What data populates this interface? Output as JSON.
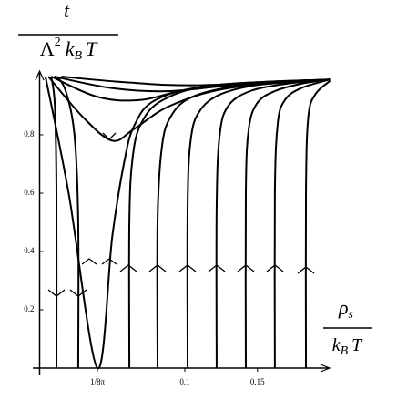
{
  "chart_data": {
    "type": "flow",
    "color": "#000000",
    "ylabel": {
      "numerator": "t",
      "denominator": [
        "Λ",
        "2",
        "k",
        "B",
        "T"
      ]
    },
    "xlabel": {
      "numerator": [
        "ρ",
        "s"
      ],
      "denominator": [
        "k",
        "B",
        "T"
      ]
    },
    "xlim": [
      0,
      0.2
    ],
    "ylim": [
      0,
      1
    ],
    "xticks": [
      {
        "value": 0.0398,
        "label": "1/8π"
      },
      0.1,
      0.15
    ],
    "yticks": [
      0.2,
      0.4,
      0.6,
      0.8
    ],
    "series": [
      {
        "x": [
          0.0116,
          0.0116,
          0.0105,
          0.008
        ],
        "y": [
          0,
          0.6,
          0.9,
          1.0
        ]
      },
      {
        "x": [
          0.0266,
          0.0266,
          0.024,
          0.018,
          0.012
        ],
        "y": [
          0,
          0.5,
          0.8,
          0.95,
          1.0
        ]
      },
      {
        "x": [
          0.004,
          0.02,
          0.0398,
          0.05,
          0.058,
          0.065,
          0.08,
          0.12,
          0.2
        ],
        "y": [
          1.0,
          0.6,
          0,
          0.45,
          0.7,
          0.83,
          0.92,
          0.97,
          0.99
        ]
      },
      {
        "x": [
          0.006,
          0.03,
          0.05,
          0.065,
          0.09,
          0.13,
          0.2
        ],
        "y": [
          1.0,
          0.86,
          0.78,
          0.82,
          0.9,
          0.96,
          0.99
        ]
      },
      {
        "x": [
          0.008,
          0.04,
          0.07,
          0.11,
          0.2
        ],
        "y": [
          1.0,
          0.93,
          0.92,
          0.96,
          0.99
        ]
      },
      {
        "x": [
          0.01,
          0.05,
          0.09,
          0.14,
          0.2
        ],
        "y": [
          1.0,
          0.96,
          0.95,
          0.975,
          0.99
        ]
      },
      {
        "x": [
          0.015,
          0.06,
          0.11,
          0.2
        ],
        "y": [
          1.0,
          0.98,
          0.97,
          0.99
        ]
      },
      {
        "x": [
          0.0618,
          0.0618,
          0.064,
          0.07,
          0.085,
          0.12,
          0.2
        ],
        "y": [
          0,
          0.5,
          0.72,
          0.84,
          0.92,
          0.97,
          0.99
        ]
      },
      {
        "x": [
          0.0812,
          0.0812,
          0.084,
          0.09,
          0.105,
          0.14,
          0.2
        ],
        "y": [
          0,
          0.5,
          0.75,
          0.86,
          0.93,
          0.97,
          0.99
        ]
      },
      {
        "x": [
          0.1019,
          0.1019,
          0.104,
          0.11,
          0.125,
          0.155,
          0.2
        ],
        "y": [
          0,
          0.55,
          0.78,
          0.88,
          0.94,
          0.975,
          0.99
        ]
      },
      {
        "x": [
          0.1219,
          0.1219,
          0.124,
          0.13,
          0.145,
          0.17,
          0.2
        ],
        "y": [
          0,
          0.55,
          0.8,
          0.9,
          0.95,
          0.975,
          0.99
        ]
      },
      {
        "x": [
          0.142,
          0.142,
          0.144,
          0.15,
          0.162,
          0.18,
          0.2
        ],
        "y": [
          0,
          0.6,
          0.82,
          0.91,
          0.95,
          0.975,
          0.99
        ]
      },
      {
        "x": [
          0.162,
          0.162,
          0.164,
          0.169,
          0.18,
          0.2
        ],
        "y": [
          0,
          0.6,
          0.84,
          0.92,
          0.96,
          0.99
        ]
      },
      {
        "x": [
          0.1834,
          0.1834,
          0.185,
          0.19,
          0.2
        ],
        "y": [
          0,
          0.6,
          0.86,
          0.94,
          0.985
        ]
      }
    ]
  }
}
